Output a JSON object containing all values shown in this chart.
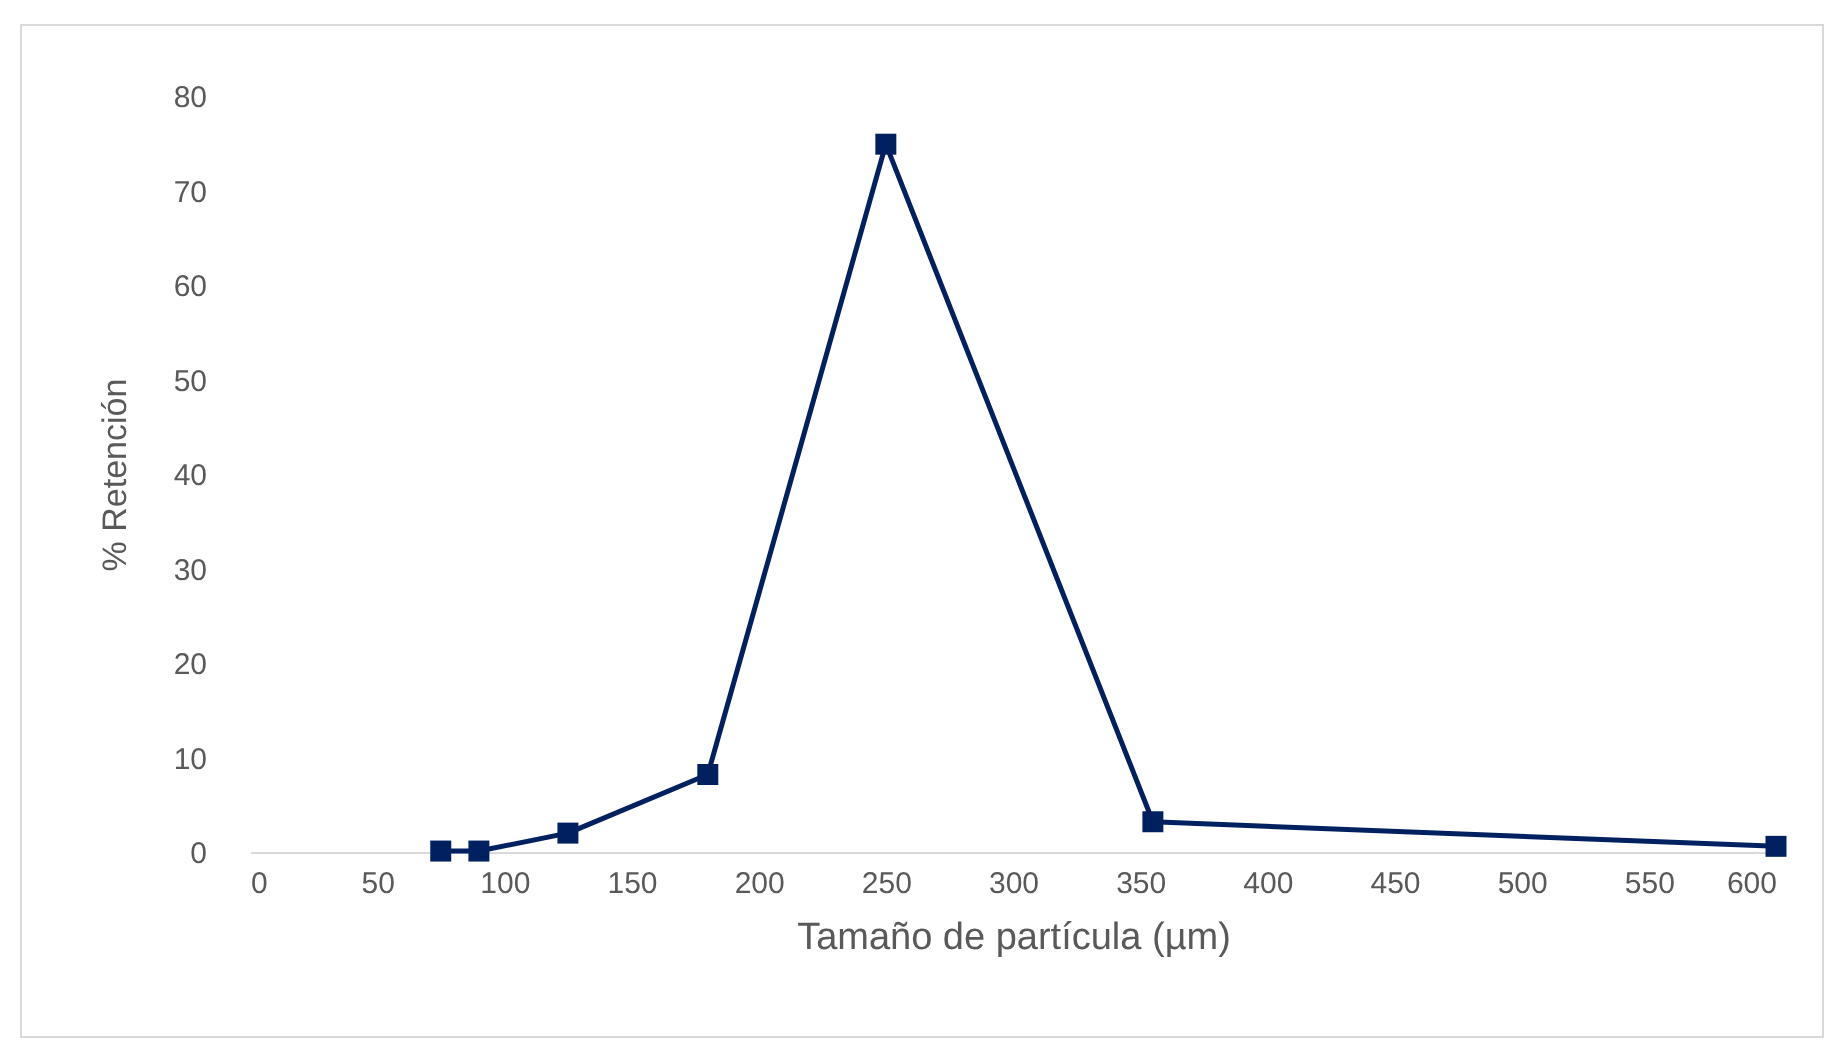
{
  "chart_data": {
    "type": "line",
    "xlabel": "Tamaño de partícula (µm)",
    "ylabel": "% Retención",
    "x": [
      75,
      90,
      125,
      180,
      250,
      355,
      600
    ],
    "series": [
      {
        "color": "#002060",
        "values": [
          0.1,
          0.1,
          2.0,
          8.2,
          74.9,
          3.2,
          0.6
        ]
      }
    ],
    "xlim": [
      0,
      600
    ],
    "xticks": [
      0,
      50,
      100,
      150,
      200,
      250,
      300,
      350,
      400,
      450,
      500,
      550,
      600
    ],
    "ylim": [
      0,
      80
    ],
    "yticks": [
      0,
      10,
      20,
      30,
      40,
      50,
      60,
      70,
      80
    ],
    "grid": false,
    "marker": "square",
    "line_style": "solid"
  }
}
